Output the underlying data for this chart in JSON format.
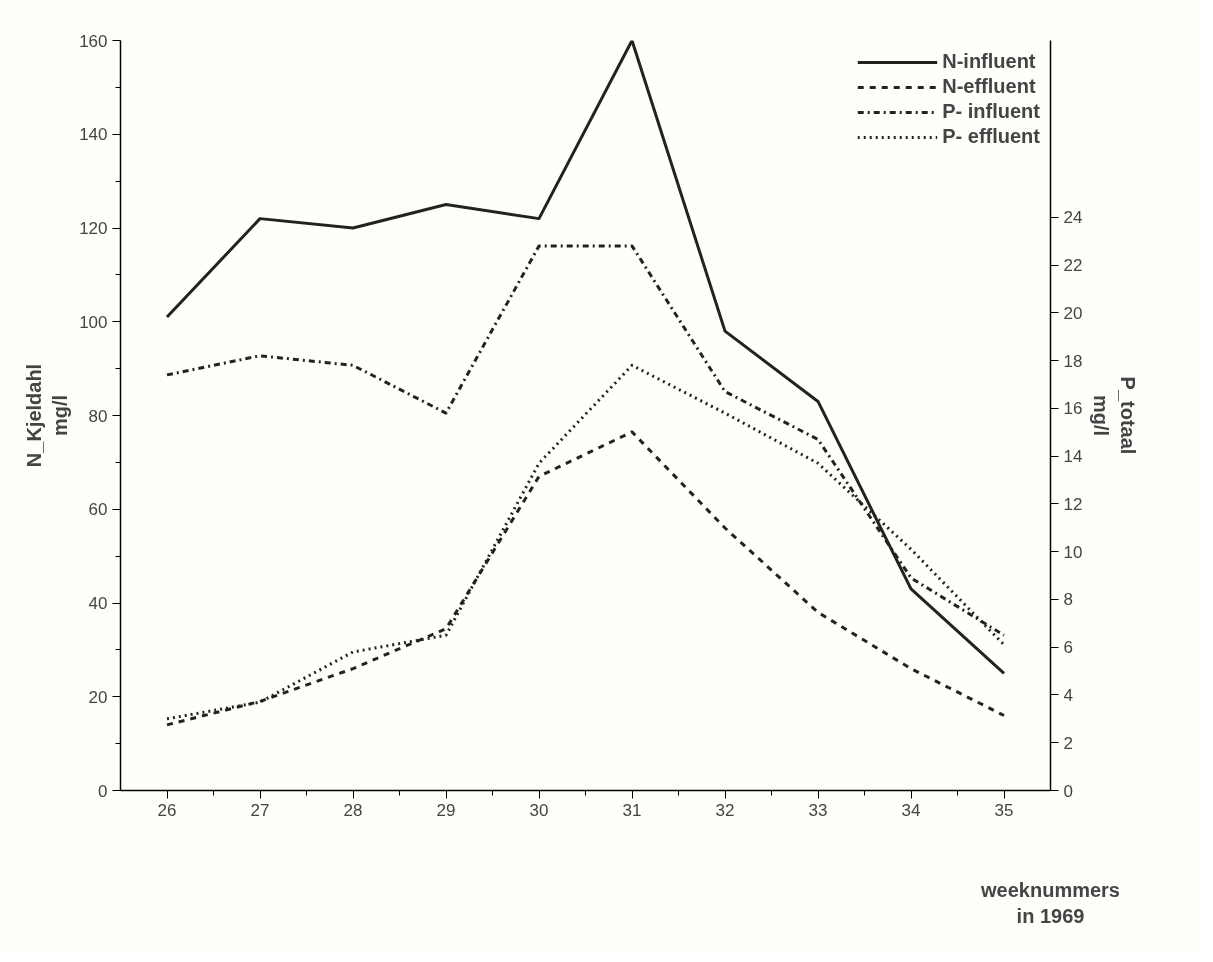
{
  "chart_data": {
    "type": "line",
    "ylabel": "N_Kjeldahl\nmg/l",
    "y2label": "P_totaal\nmg/l",
    "xlabel": "weeknummers\nin 1969",
    "x": [
      26,
      27,
      28,
      29,
      30,
      31,
      32,
      33,
      34,
      35
    ],
    "xlim": [
      25.5,
      35.5
    ],
    "xticks": [
      26,
      27,
      28,
      29,
      30,
      31,
      32,
      33,
      34,
      35
    ],
    "ylim": [
      0,
      160
    ],
    "yticks": [
      0,
      20,
      40,
      60,
      80,
      100,
      120,
      140,
      160
    ],
    "y2lim": [
      0,
      31.4
    ],
    "y2ticks": [
      0,
      2,
      4,
      6,
      8,
      10,
      12,
      14,
      16,
      18,
      20,
      22,
      24
    ],
    "grid": false,
    "legend": "top right",
    "marker": "none",
    "series": [
      {
        "name": "N-influent",
        "color": "#222222",
        "line_style": "solid",
        "values": [
          101,
          122,
          120,
          125,
          122,
          160,
          98,
          83,
          43,
          25
        ]
      },
      {
        "name": "N-effluent",
        "color": "#222222",
        "line_style": "dashed",
        "values": [
          14,
          19,
          26,
          34.5,
          67,
          76.5,
          56,
          38,
          26,
          16
        ]
      },
      {
        "name": "P- influent",
        "color": "#222222",
        "line_style": "dashdot",
        "axis": "y2",
        "values": [
          17.4,
          18.2,
          17.8,
          15.8,
          22.8,
          22.8,
          16.7,
          14.7,
          8.9,
          6.5
        ]
      },
      {
        "name": "P- effluent",
        "color": "#222222",
        "line_style": "dotted",
        "axis": "y2",
        "values": [
          3.0,
          3.7,
          5.8,
          6.5,
          13.7,
          17.8,
          15.8,
          13.7,
          10.1,
          6.1
        ]
      }
    ]
  }
}
